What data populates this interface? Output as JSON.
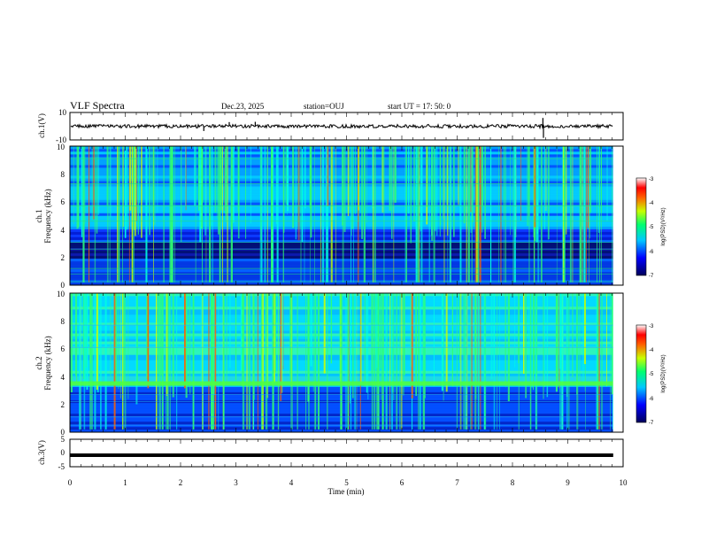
{
  "header": {
    "title": "VLF Spectra",
    "date": "Dec.23, 2025",
    "station": "station=OUJ",
    "start": "start  UT =   17: 50: 0"
  },
  "chart_data": [
    {
      "type": "line",
      "name": "ch1-waveform",
      "ylabel": "ch.1(V)",
      "ylim": [
        -10,
        10
      ],
      "ytick_labels": [
        "10",
        "-10"
      ],
      "baseline": 0,
      "spikes": [
        {
          "x": 2.42,
          "y": -3.5
        },
        {
          "x": 2.88,
          "y": 3.0
        },
        {
          "x": 3.35,
          "y": 3.2
        },
        {
          "x": 8.55,
          "y": 6.0
        },
        {
          "x": 8.56,
          "y": -8.5
        }
      ]
    },
    {
      "type": "heatmap",
      "name": "ch1-spectrogram",
      "ylabel": "ch.1",
      "ylabel2": "Frequency (kHz)",
      "ylim": [
        0,
        10
      ],
      "ytick_labels": [
        "0",
        "2",
        "4",
        "6",
        "8",
        "10"
      ],
      "noise_band_khz": [
        1.8,
        3.2
      ],
      "colorbar": {
        "label": "log(PSD)(V²/Hz)",
        "range": [
          -7,
          -3
        ],
        "tick_labels": [
          "-3",
          "-4",
          "-5",
          "-6",
          "-7"
        ]
      }
    },
    {
      "type": "heatmap",
      "name": "ch2-spectrogram",
      "ylabel": "ch.2",
      "ylabel2": "Frequency (kHz)",
      "ylim": [
        0,
        10
      ],
      "ytick_labels": [
        "0",
        "2",
        "4",
        "6",
        "8",
        "10"
      ],
      "line_khz": 3.5,
      "colorbar": {
        "label": "log(PSD)(V²/Hz)",
        "range": [
          -7,
          -3
        ],
        "tick_labels": [
          "-3",
          "-4",
          "-5",
          "-6",
          "-7"
        ]
      }
    },
    {
      "type": "line",
      "name": "ch3-waveform",
      "ylabel": "ch.3(V)",
      "ylim": [
        -5,
        5
      ],
      "ytick_labels": [
        "5",
        "0",
        "-5"
      ],
      "baseline": -0.8
    }
  ],
  "xaxis": {
    "label": "Time  (min)",
    "range": [
      0,
      10
    ],
    "data_end": 9.82,
    "tick_labels": [
      "0",
      "1",
      "2",
      "3",
      "4",
      "5",
      "6",
      "7",
      "8",
      "9",
      "10"
    ]
  }
}
